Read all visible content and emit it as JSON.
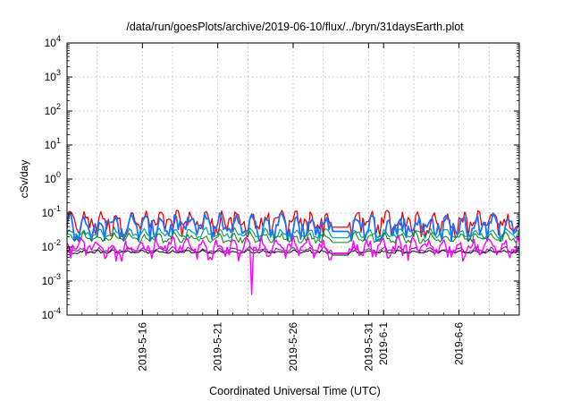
{
  "chart_data": {
    "type": "line",
    "title": "/data/run/goesPlots/archive/2019-06-10/flux/../bryn/31daysEarth.plot",
    "xlabel": "Coordinated Universal Time (UTC)",
    "ylabel": "cSv/day",
    "yscale": "log",
    "ylim": [
      0.0001,
      10000
    ],
    "y_tick_values": [
      0.0001,
      0.001,
      0.01,
      0.1,
      1,
      10,
      100,
      1000,
      10000
    ],
    "y_tick_labels": [
      {
        "base": "10",
        "exp": "-4"
      },
      {
        "base": "10",
        "exp": "-3"
      },
      {
        "base": "10",
        "exp": "-2"
      },
      {
        "base": "10",
        "exp": "-1"
      },
      {
        "base": "10",
        "exp": "0"
      },
      {
        "base": "10",
        "exp": "1"
      },
      {
        "base": "10",
        "exp": "2"
      },
      {
        "base": "10",
        "exp": "3"
      },
      {
        "base": "10",
        "exp": "4"
      }
    ],
    "xlim": [
      "2019-05-11",
      "2019-06-10"
    ],
    "x_ticks": [
      {
        "date": "2019-05-16",
        "label": "2019-5-16"
      },
      {
        "date": "2019-05-21",
        "label": "2019-5-21"
      },
      {
        "date": "2019-05-26",
        "label": "2019-5-26"
      },
      {
        "date": "2019-05-31",
        "label": "2019-5-31"
      },
      {
        "date": "2019-06-01",
        "label": "2019-6-1"
      },
      {
        "date": "2019-06-06",
        "label": "2019-6-6"
      }
    ],
    "x_minor_grid_dates": [
      "2019-05-13",
      "2019-05-18",
      "2019-05-23",
      "2019-05-28",
      "2019-06-03",
      "2019-06-08"
    ],
    "grid": true,
    "data_gap": [
      "2019-05-28T14:00",
      "2019-05-29T17:00"
    ],
    "anomaly": {
      "date": "2019-05-23T06:00",
      "value": 0.0004
    },
    "series": [
      {
        "color": "#ee0000",
        "base": 0.045,
        "amp": 0.045,
        "noise": 0.03,
        "width": 1.3
      },
      {
        "color": "#1f6fff",
        "base": 0.034,
        "amp": 0.036,
        "noise": 0.025,
        "width": 1.8
      },
      {
        "color": "#00a0a0",
        "base": 0.022,
        "amp": 0.01,
        "noise": 0.004,
        "width": 1.2
      },
      {
        "color": "#008800",
        "base": 0.016,
        "amp": 0.008,
        "noise": 0.003,
        "width": 1.0
      },
      {
        "color": "#8800aa",
        "base": 0.0075,
        "amp": 0.002,
        "noise": 0.0008,
        "width": 1.0
      },
      {
        "color": "#000000",
        "base": 0.0068,
        "amp": 0.001,
        "noise": 0.0004,
        "width": 1.0
      },
      {
        "color": "#ff00ff",
        "base": 0.0078,
        "amp": 0.008,
        "noise": 0.004,
        "width": 1.4
      }
    ]
  }
}
